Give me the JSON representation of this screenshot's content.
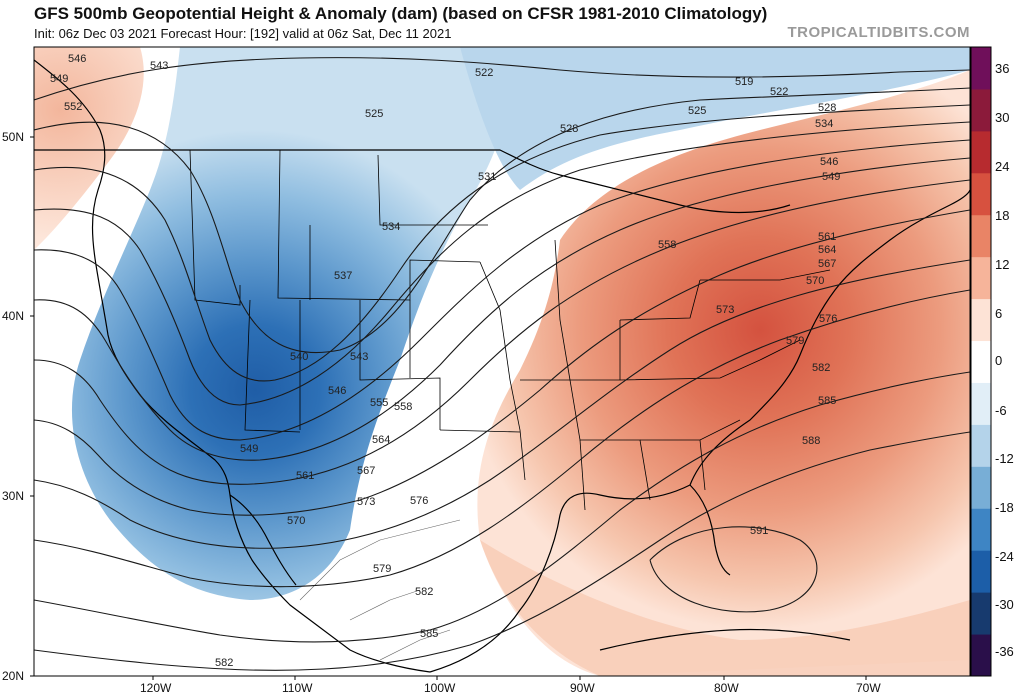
{
  "header": {
    "title": "GFS 500mb Geopotential Height & Anomaly (dam) (based on CFSR 1981-2010 Climatology)",
    "subtitle": "Init: 06z Dec 03 2021   Forecast Hour: [192]   valid at 06z Sat, Dec 11 2021",
    "brand": "TROPICALTIDBITS.COM"
  },
  "axes": {
    "latitudes": [
      "50N",
      "40N",
      "30N",
      "20N"
    ],
    "longitudes": [
      "120W",
      "110W",
      "100W",
      "90W",
      "80W",
      "70W"
    ]
  },
  "colorbar": {
    "labels": [
      "36",
      "30",
      "24",
      "18",
      "12",
      "6",
      "0",
      "-6",
      "-12",
      "-18",
      "-24",
      "-30",
      "-36"
    ],
    "colors": [
      "#2a0f4a",
      "#173a6e",
      "#1c5ea8",
      "#3e85c4",
      "#78aed6",
      "#b4d3ea",
      "#e1eef7",
      "#ffffff",
      "#fde3d6",
      "#f6b49a",
      "#e98466",
      "#d7513f",
      "#b72b2f",
      "#8b1a3a",
      "#6f0f5a"
    ]
  },
  "contour_labels": [
    "549",
    "546",
    "543",
    "552",
    "522",
    "525",
    "528",
    "519",
    "522",
    "525",
    "528",
    "534",
    "546",
    "549",
    "531",
    "534",
    "537",
    "540",
    "543",
    "546",
    "549",
    "555",
    "558",
    "561",
    "564",
    "567",
    "570",
    "573",
    "576",
    "579",
    "582",
    "585",
    "588",
    "591",
    "558",
    "561",
    "564",
    "567",
    "570",
    "573",
    "576",
    "579",
    "582",
    "582",
    "585",
    "561",
    "567",
    "570",
    "573",
    "576",
    "579",
    "582",
    "585"
  ],
  "colors": {
    "coast": "#000000",
    "border": "#000000",
    "contour": "#1a1a1a"
  }
}
